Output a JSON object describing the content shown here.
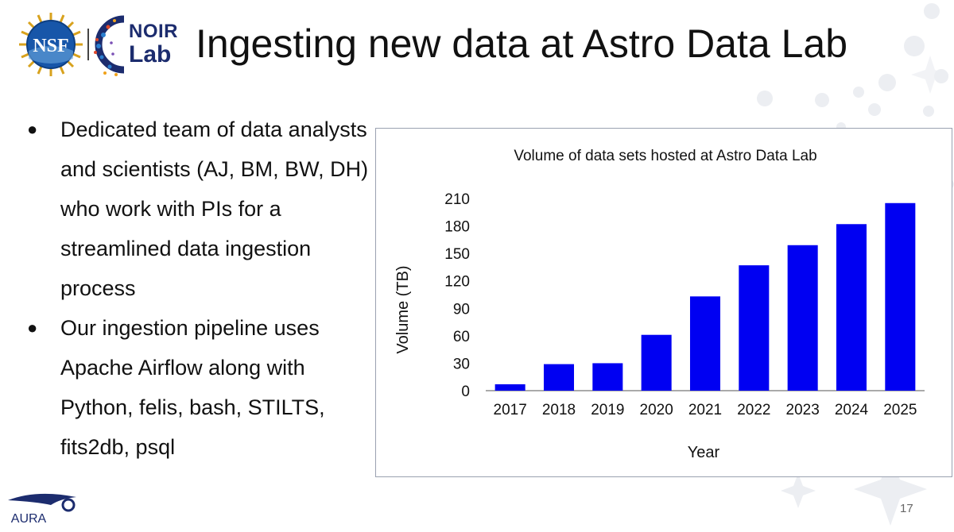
{
  "header": {
    "nsf_logo_text": "NSF",
    "noir_logo": {
      "line1": "NOIR",
      "line2": "Lab"
    },
    "title": "Ingesting new data at Astro Data Lab"
  },
  "bullets": [
    {
      "marker": "●",
      "text": "Dedicated team of data analysts and scientists (AJ, BM, BW, DH) who work with PIs for a streamlined data ingestion process"
    },
    {
      "marker": "●",
      "text": "Our ingestion pipeline uses Apache Airflow along with Python, felis, bash, STILTS, fits2db, psql"
    }
  ],
  "footer": {
    "aura_logo_text": "AURA",
    "page_number": "17"
  },
  "colors": {
    "bar": "#0000f2",
    "brand_navy": "#1c2c6e",
    "frame_border": "#9aa1b0"
  },
  "chart_data": {
    "type": "bar",
    "title": "Volume of data sets hosted at Astro Data Lab",
    "xlabel": "Year",
    "ylabel": "Volume (TB)",
    "categories": [
      "2017",
      "2018",
      "2019",
      "2020",
      "2021",
      "2022",
      "2023",
      "2024",
      "2025"
    ],
    "values": [
      7,
      29,
      30,
      61,
      103,
      137,
      159,
      182,
      205
    ],
    "ylim": [
      0,
      210
    ],
    "yticks": [
      0,
      30,
      60,
      90,
      120,
      150,
      180,
      210
    ],
    "grid": false,
    "legend": "none"
  }
}
